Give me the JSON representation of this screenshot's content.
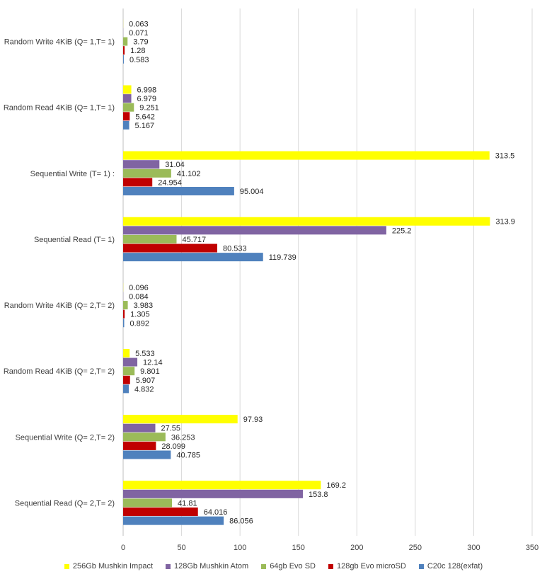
{
  "chart_data": {
    "type": "bar",
    "orientation": "horizontal",
    "categories": [
      "Random Write 4KiB (Q= 1,T= 1)",
      "Random Read 4KiB (Q= 1,T= 1)",
      "Sequential Write (T= 1) :",
      "Sequential Read (T= 1)",
      "Random Write 4KiB (Q=  2,T= 2)",
      "Random Read 4KiB (Q=  2,T= 2)",
      "Sequential Write (Q=  2,T= 2)",
      "Sequential Read (Q=  2,T= 2)"
    ],
    "series": [
      {
        "name": "256Gb Mushkin Impact",
        "color": "#ffff00",
        "values": [
          0.063,
          6.998,
          313.5,
          313.9,
          0.096,
          5.533,
          97.93,
          169.2
        ],
        "labels": [
          "0.063",
          "6.998",
          "313.5",
          "313.9",
          "0.096",
          "5.533",
          "97.93",
          "169.2"
        ]
      },
      {
        "name": "128Gb Mushkin Atom",
        "color": "#8064a2",
        "values": [
          0.071,
          6.979,
          31.04,
          225.2,
          0.084,
          12.14,
          27.55,
          153.8
        ],
        "labels": [
          "0.071",
          "6.979",
          "31.04",
          "225.2",
          "0.084",
          "12.14",
          "27.55",
          "153.8"
        ]
      },
      {
        "name": "64gb Evo SD",
        "color": "#9bbb59",
        "values": [
          3.79,
          9.251,
          41.102,
          45.717,
          3.983,
          9.801,
          36.253,
          41.81
        ],
        "labels": [
          "3.79",
          "9.251",
          "41.102",
          "45.717",
          "3.983",
          "9.801",
          "36.253",
          "41.81"
        ]
      },
      {
        "name": "128gb Evo microSD",
        "color": "#c00000",
        "values": [
          1.28,
          5.642,
          24.954,
          80.533,
          1.305,
          5.907,
          28.099,
          64.016
        ],
        "labels": [
          "1.28",
          "5.642",
          "24.954",
          "80.533",
          "1.305",
          "5.907",
          "28.099",
          "64.016"
        ]
      },
      {
        "name": "C20c 128(exfat)",
        "color": "#4f81bd",
        "values": [
          0.583,
          5.167,
          95.004,
          119.739,
          0.892,
          4.832,
          40.785,
          86.056
        ],
        "labels": [
          "0.583",
          "5.167",
          "95.004",
          "119.739",
          "0.892",
          "4.832",
          "40.785",
          "86.056"
        ]
      }
    ],
    "xlim": [
      0,
      350
    ],
    "xticks": [
      "0",
      "50",
      "100",
      "150",
      "200",
      "250",
      "300",
      "350"
    ],
    "grid": true,
    "legend_position": "bottom"
  }
}
